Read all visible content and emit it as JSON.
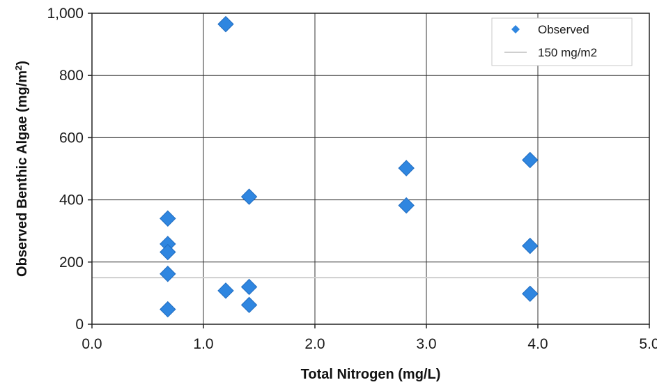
{
  "chart_data": {
    "type": "scatter",
    "xlabel": "Total Nitrogen (mg/L)",
    "ylabel_main": "Observed Benthic  Algae  (mg/m",
    "ylabel_sup": "2",
    "ylabel_close": ")",
    "xlim": [
      0,
      5
    ],
    "ylim": [
      0,
      1000
    ],
    "x_ticks": [
      0,
      1,
      2,
      3,
      4,
      5
    ],
    "x_tick_labels": [
      "0.0",
      "1.0",
      "2.0",
      "3.0",
      "4.0",
      "5.0"
    ],
    "y_ticks": [
      0,
      200,
      400,
      600,
      800,
      1000
    ],
    "y_tick_labels": [
      "0",
      "200",
      "400",
      "600",
      "800",
      "1,000"
    ],
    "grid": true,
    "legend_placement": "top-right",
    "series": [
      {
        "name": "Observed",
        "marker": "diamond",
        "color": "#2f86e0",
        "points": [
          {
            "x": 0.68,
            "y": 340
          },
          {
            "x": 0.68,
            "y": 258
          },
          {
            "x": 0.68,
            "y": 232
          },
          {
            "x": 0.68,
            "y": 162
          },
          {
            "x": 0.68,
            "y": 48
          },
          {
            "x": 1.2,
            "y": 965
          },
          {
            "x": 1.2,
            "y": 108
          },
          {
            "x": 1.41,
            "y": 410
          },
          {
            "x": 1.41,
            "y": 120
          },
          {
            "x": 1.41,
            "y": 62
          },
          {
            "x": 2.82,
            "y": 502
          },
          {
            "x": 2.82,
            "y": 382
          },
          {
            "x": 3.93,
            "y": 528
          },
          {
            "x": 3.93,
            "y": 252
          },
          {
            "x": 3.93,
            "y": 98
          }
        ]
      },
      {
        "name": "150 mg/m2",
        "type": "line",
        "color": "#cfcfcf",
        "y": 150
      }
    ]
  }
}
